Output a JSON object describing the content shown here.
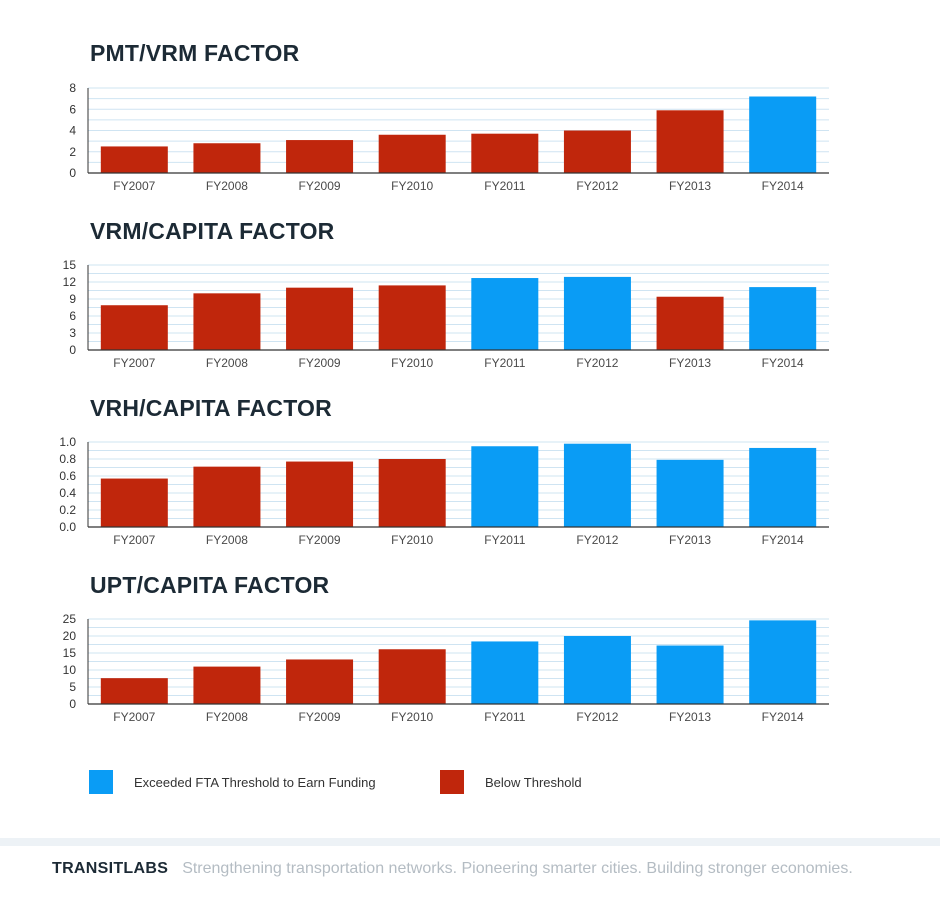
{
  "colors": {
    "above": "#0a9cf5",
    "below": "#c0260c",
    "grid": "#cfe4f2",
    "axis": "#333333"
  },
  "chart_data": [
    {
      "type": "bar",
      "title": "PMT/VRM FACTOR",
      "categories": [
        "FY2007",
        "FY2008",
        "FY2009",
        "FY2010",
        "FY2011",
        "FY2012",
        "FY2013",
        "FY2014"
      ],
      "values": [
        2.5,
        2.8,
        3.1,
        3.6,
        3.7,
        4.0,
        5.9,
        7.2
      ],
      "status": [
        "below",
        "below",
        "below",
        "below",
        "below",
        "below",
        "below",
        "above"
      ],
      "ylim": [
        0,
        8
      ],
      "yticks": [
        "0",
        "2",
        "4",
        "6",
        "8"
      ],
      "ytick_values": [
        0,
        2,
        4,
        6,
        8
      ],
      "grid_step": 1,
      "grid": true
    },
    {
      "type": "bar",
      "title": "VRM/CAPITA FACTOR",
      "categories": [
        "FY2007",
        "FY2008",
        "FY2009",
        "FY2010",
        "FY2011",
        "FY2012",
        "FY2013",
        "FY2014"
      ],
      "values": [
        7.9,
        10.0,
        11.0,
        11.4,
        12.7,
        12.9,
        9.4,
        11.1
      ],
      "status": [
        "below",
        "below",
        "below",
        "below",
        "above",
        "above",
        "below",
        "above"
      ],
      "ylim": [
        0,
        15
      ],
      "yticks": [
        "0",
        "3",
        "6",
        "9",
        "12",
        "15"
      ],
      "ytick_values": [
        0,
        3,
        6,
        9,
        12,
        15
      ],
      "grid_step": 1.5,
      "grid": true
    },
    {
      "type": "bar",
      "title": "VRH/CAPITA FACTOR",
      "categories": [
        "FY2007",
        "FY2008",
        "FY2009",
        "FY2010",
        "FY2011",
        "FY2012",
        "FY2013",
        "FY2014"
      ],
      "values": [
        0.57,
        0.71,
        0.77,
        0.8,
        0.95,
        0.98,
        0.79,
        0.93
      ],
      "status": [
        "below",
        "below",
        "below",
        "below",
        "above",
        "above",
        "above",
        "above"
      ],
      "ylim": [
        0,
        1.0
      ],
      "yticks": [
        "0.0",
        "0.2",
        "0.4",
        "0.6",
        "0.8",
        "1.0"
      ],
      "ytick_values": [
        0,
        0.2,
        0.4,
        0.6,
        0.8,
        1.0
      ],
      "grid_step": 0.1,
      "grid": true
    },
    {
      "type": "bar",
      "title": "UPT/CAPITA FACTOR",
      "categories": [
        "FY2007",
        "FY2008",
        "FY2009",
        "FY2010",
        "FY2011",
        "FY2012",
        "FY2013",
        "FY2014"
      ],
      "values": [
        7.6,
        11.0,
        13.1,
        16.1,
        18.4,
        20.0,
        17.2,
        24.6
      ],
      "status": [
        "below",
        "below",
        "below",
        "below",
        "above",
        "above",
        "above",
        "above"
      ],
      "ylim": [
        0,
        25
      ],
      "yticks": [
        "0",
        "5",
        "10",
        "15",
        "20",
        "25"
      ],
      "ytick_values": [
        0,
        5,
        10,
        15,
        20,
        25
      ],
      "grid_step": 2.5,
      "grid": true
    }
  ],
  "legend": {
    "above_label": "Exceeded FTA Threshold to Earn Funding",
    "below_label": "Below Threshold"
  },
  "footer": {
    "brand": "TRANSITLABS",
    "tagline": "Strengthening transportation networks. Pioneering smarter cities. Building stronger economies."
  }
}
